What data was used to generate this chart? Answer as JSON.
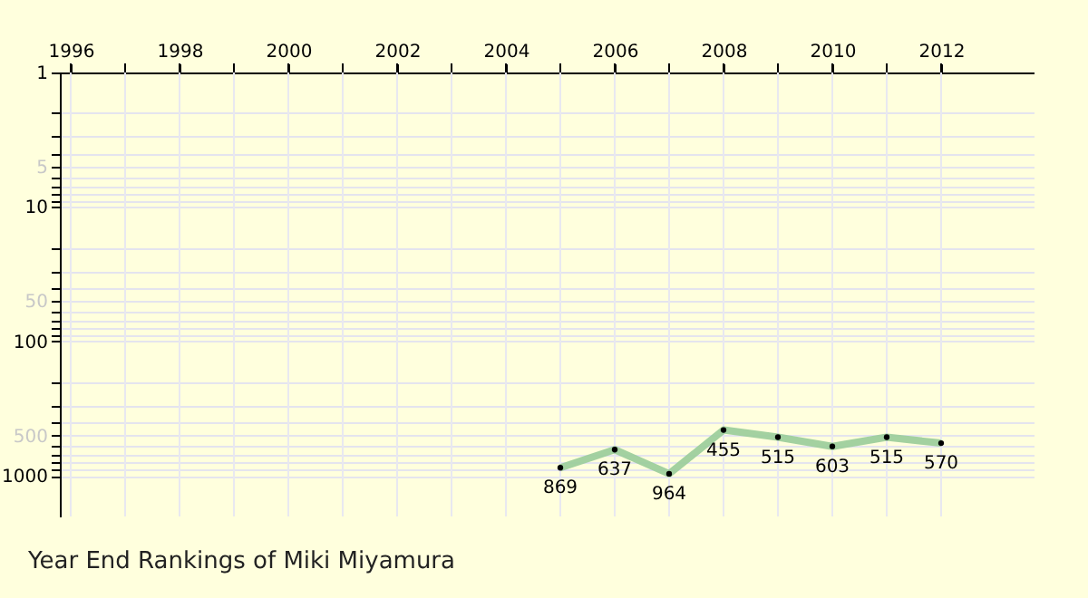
{
  "chart_data": {
    "type": "line",
    "title": "Year End Rankings of  Miki Miyamura",
    "x": [
      2005,
      2006,
      2007,
      2008,
      2009,
      2010,
      2011,
      2012
    ],
    "series": [
      {
        "color": "#99cc99",
        "values": [
          869,
          637,
          964,
          455,
          515,
          603,
          515,
          570
        ]
      }
    ],
    "data_labels": true,
    "marker": "circle",
    "line_style": "solid",
    "log": "y",
    "grid": true,
    "xlim": [
      1995.8,
      2013.7
    ],
    "xticks": [
      1996,
      {
        "value": 1997,
        "label": null
      },
      1998,
      {
        "value": 1999,
        "label": null
      },
      2000,
      {
        "value": 2001,
        "label": null
      },
      2002,
      {
        "value": 2003,
        "label": null
      },
      2004,
      {
        "value": 2005,
        "label": null
      },
      2006,
      {
        "value": 2007,
        "label": null
      },
      2008,
      {
        "value": 2009,
        "label": null
      },
      2010,
      {
        "value": 2011,
        "label": null
      },
      2012
    ],
    "ylim": [
      2000,
      1
    ],
    "yticks": [
      1,
      {
        "value": 2,
        "label": null
      },
      {
        "value": 3,
        "label": null
      },
      {
        "value": 4,
        "label": null
      },
      5,
      {
        "value": 6,
        "label": null
      },
      {
        "value": 7,
        "label": null
      },
      {
        "value": 8,
        "label": null
      },
      {
        "value": 9,
        "label": null
      },
      10,
      {
        "value": 20,
        "label": null
      },
      {
        "value": 30,
        "label": null
      },
      {
        "value": 40,
        "label": null
      },
      50,
      {
        "value": 60,
        "label": null
      },
      {
        "value": 70,
        "label": null
      },
      {
        "value": 80,
        "label": null
      },
      {
        "value": 90,
        "label": null
      },
      100,
      {
        "value": 200,
        "label": null
      },
      {
        "value": 300,
        "label": null
      },
      {
        "value": 400,
        "label": null
      },
      500,
      {
        "value": 600,
        "label": null
      },
      {
        "value": 700,
        "label": null
      },
      {
        "value": 800,
        "label": null
      },
      {
        "value": 900,
        "label": null
      },
      1000
    ]
  }
}
